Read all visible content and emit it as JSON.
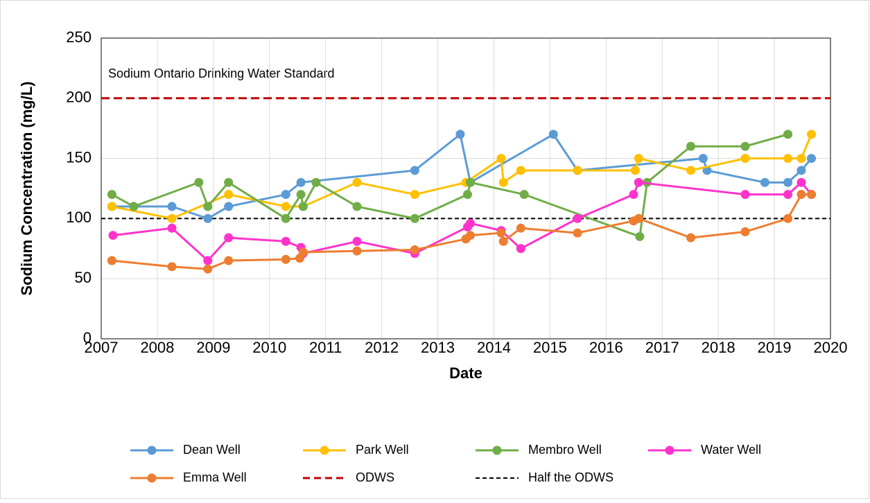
{
  "chart_data": {
    "type": "line",
    "x_label": "Date",
    "y_label": "Sodium Concentration (mg/L)",
    "annotation": "Sodium Ontario Drinking Water Standard",
    "xlim": [
      2007,
      2020
    ],
    "xticks": [
      2007,
      2008,
      2009,
      2010,
      2011,
      2012,
      2013,
      2014,
      2015,
      2016,
      2017,
      2018,
      2019,
      2020
    ],
    "ylim": [
      0,
      250
    ],
    "yticks": [
      0,
      50,
      100,
      150,
      200,
      250
    ],
    "grid": true,
    "series": [
      {
        "name": "Dean Well",
        "color": "#5b9bd5",
        "x": [
          2007.19,
          2007.58,
          2008.26,
          2008.9,
          2009.27,
          2010.29,
          2010.56,
          2012.59,
          2013.4,
          2013.58,
          2015.06,
          2015.49,
          2017.73,
          2017.8,
          2018.83,
          2019.24,
          2019.48,
          2019.66
        ],
        "values": [
          110,
          110,
          110,
          100,
          110,
          120,
          130,
          140,
          170,
          130,
          170,
          140,
          150,
          140,
          130,
          130,
          140,
          150
        ]
      },
      {
        "name": "Park Well",
        "color": "#ffc000",
        "x": [
          2007.19,
          2008.26,
          2009.27,
          2010.29,
          2010.6,
          2011.56,
          2012.59,
          2013.5,
          2014.13,
          2014.17,
          2014.48,
          2015.49,
          2016.52,
          2016.58,
          2017.51,
          2018.48,
          2019.24,
          2019.48,
          2019.66
        ],
        "values": [
          110,
          100,
          120,
          110,
          110,
          130,
          120,
          130,
          150,
          130,
          140,
          140,
          140,
          150,
          140,
          150,
          150,
          150,
          170
        ]
      },
      {
        "name": "Membro Well",
        "color": "#70ad47",
        "x": [
          2007.19,
          2007.58,
          2008.74,
          2008.9,
          2009.27,
          2010.29,
          2010.56,
          2010.6,
          2010.83,
          2011.56,
          2012.59,
          2013.53,
          2013.58,
          2014.54,
          2016.6,
          2016.73,
          2017.51,
          2018.48,
          2019.24
        ],
        "values": [
          120,
          110,
          130,
          110,
          130,
          100,
          120,
          110,
          130,
          110,
          100,
          120,
          130,
          120,
          85,
          130,
          160,
          160,
          170
        ]
      },
      {
        "name": "Water Well",
        "color": "#ff33cc",
        "x": [
          2007.21,
          2008.26,
          2008.9,
          2009.27,
          2010.29,
          2010.56,
          2010.6,
          2011.56,
          2012.59,
          2013.53,
          2013.58,
          2014.13,
          2014.48,
          2015.49,
          2016.49,
          2016.58,
          2018.48,
          2019.24,
          2019.48,
          2019.66
        ],
        "values": [
          86,
          92,
          65,
          84,
          81,
          76,
          71,
          81,
          71,
          93,
          96,
          90,
          75,
          100,
          120,
          130,
          120,
          120,
          130,
          120
        ]
      },
      {
        "name": "Emma Well",
        "color": "#ed7d31",
        "x": [
          2007.19,
          2008.26,
          2008.9,
          2009.27,
          2010.29,
          2010.54,
          2010.6,
          2011.56,
          2012.59,
          2013.5,
          2013.58,
          2014.13,
          2014.17,
          2014.48,
          2015.49,
          2016.49,
          2016.58,
          2017.51,
          2018.48,
          2019.24,
          2019.48,
          2019.66
        ],
        "values": [
          65,
          60,
          58,
          65,
          66,
          67,
          72,
          73,
          74,
          83,
          86,
          88,
          81,
          92,
          88,
          98,
          100,
          84,
          89,
          100,
          120,
          120
        ]
      }
    ],
    "hlines": [
      {
        "name": "ODWS",
        "value": 200,
        "color": "#c00000"
      },
      {
        "name": "Half the ODWS",
        "value": 100,
        "color": "#000000"
      }
    ]
  }
}
